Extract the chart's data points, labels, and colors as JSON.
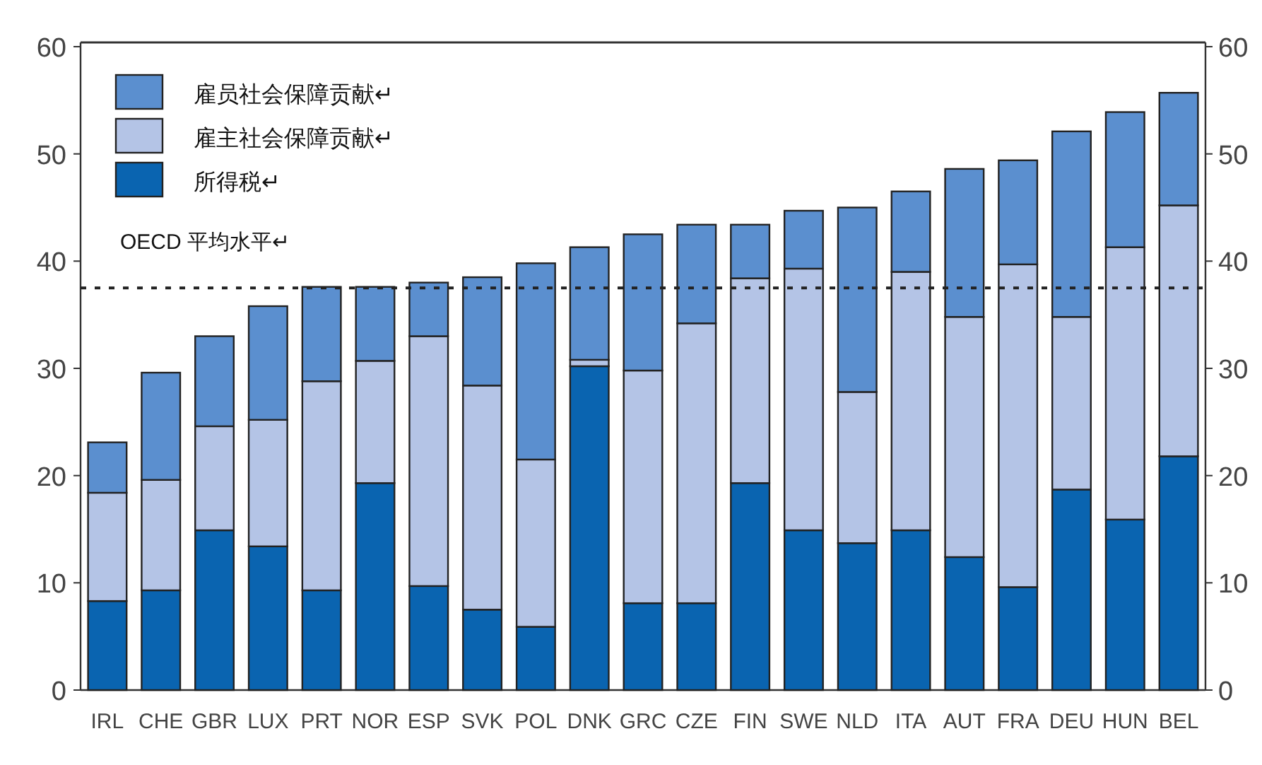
{
  "chart_data": {
    "type": "bar",
    "stacked": true,
    "legend": "top left",
    "grid": false,
    "categories": [
      "IRL",
      "CHE",
      "GBR",
      "LUX",
      "PRT",
      "NOR",
      "ESP",
      "SVK",
      "POL",
      "DNK",
      "GRC",
      "CZE",
      "FIN",
      "SWE",
      "NLD",
      "ITA",
      "AUT",
      "FRA",
      "DEU",
      "HUN",
      "BEL"
    ],
    "series": [
      {
        "name": "所得税↵",
        "color": "#0a64b0",
        "values": [
          8.3,
          9.3,
          14.9,
          13.4,
          9.3,
          19.3,
          9.7,
          7.5,
          5.9,
          30.2,
          8.1,
          8.1,
          19.3,
          14.9,
          13.7,
          14.9,
          12.4,
          9.6,
          18.7,
          15.9,
          21.8
        ]
      },
      {
        "name": "雇主社会保障贡献↵",
        "color": "#b4c4e6",
        "values": [
          10.1,
          10.3,
          9.7,
          11.8,
          19.5,
          11.4,
          23.3,
          20.9,
          15.6,
          0.6,
          21.7,
          26.1,
          19.1,
          24.4,
          14.1,
          24.1,
          22.4,
          30.1,
          16.1,
          25.4,
          23.4
        ]
      },
      {
        "name": "雇员社会保障贡献↵",
        "color": "#5b8fcf",
        "values": [
          4.7,
          10.0,
          8.4,
          10.6,
          8.8,
          6.9,
          5.0,
          10.1,
          18.3,
          10.5,
          12.7,
          9.2,
          5.0,
          5.4,
          17.2,
          7.5,
          13.8,
          9.7,
          17.3,
          12.6,
          10.5
        ]
      }
    ],
    "ylim": [
      0,
      60
    ],
    "yticks": [
      0,
      10,
      20,
      30,
      40,
      50,
      60
    ],
    "y2lim": [
      0,
      60
    ],
    "y2ticks": [
      0,
      10,
      20,
      30,
      40,
      50,
      60
    ],
    "ref_lines": [
      {
        "axis": "y",
        "value": 37.5,
        "label": "OECD 平均水平↵",
        "color": "#222222",
        "line_style": "dotted"
      }
    ]
  }
}
